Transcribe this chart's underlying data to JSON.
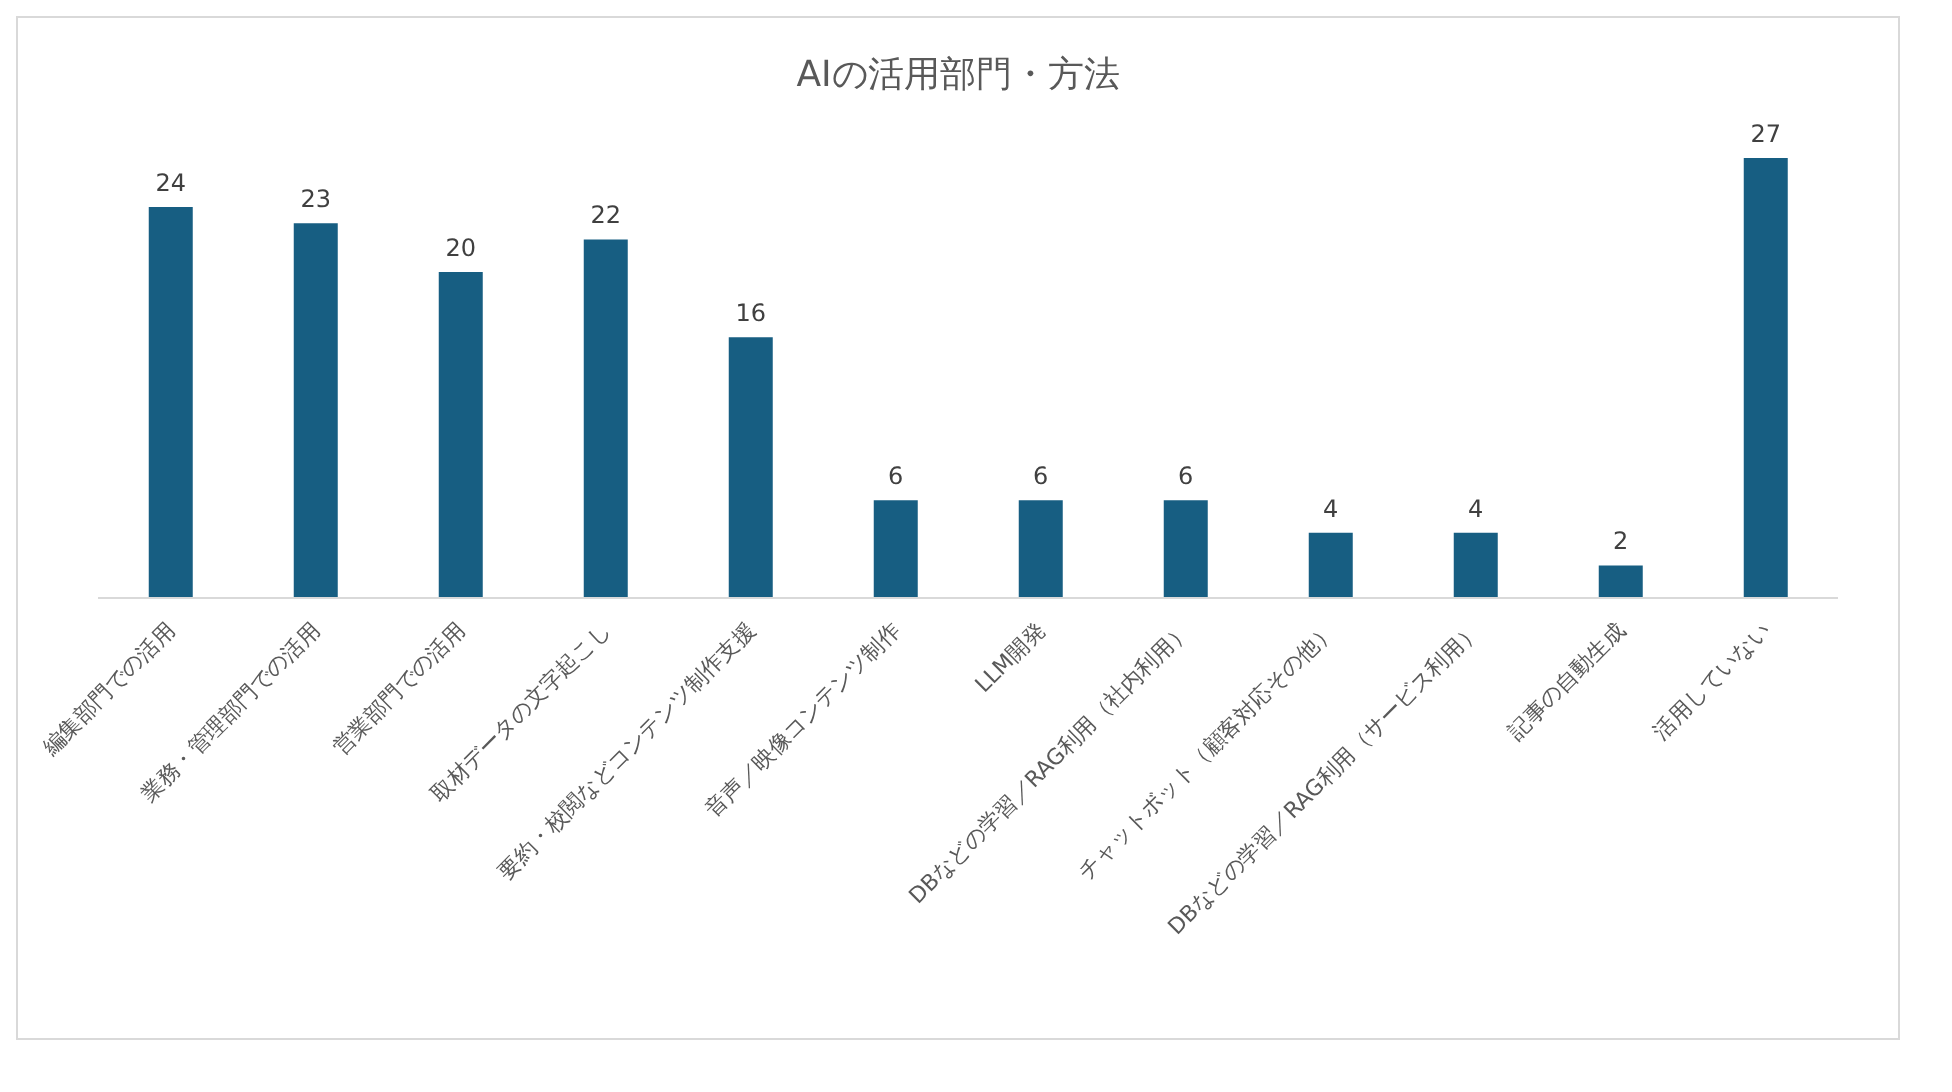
{
  "chart_data": {
    "type": "bar",
    "title": "AIの活用部門・方法",
    "categories": [
      "編集部門での活用",
      "業務・管理部門での活用",
      "営業部門での活用",
      "取材データの文字起こし",
      "要約・校閲などコンテンツ制作支援",
      "音声／映像コンテンツ制作",
      "LLM開発",
      "DBなどの学習／RAG利用（社内利用）",
      "チャットボット（顧客対応その他）",
      "DBなどの学習／RAG利用（サービス利用）",
      "記事の自動生成",
      "活用していない"
    ],
    "values": [
      24,
      23,
      20,
      22,
      16,
      6,
      6,
      6,
      4,
      4,
      2,
      27
    ],
    "color": "#175e82",
    "data_labels": true,
    "grid": false,
    "legend": false
  }
}
